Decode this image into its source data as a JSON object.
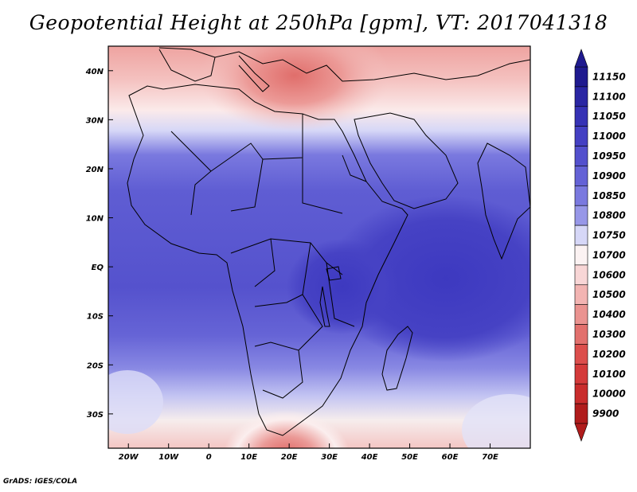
{
  "title": "Geopotential Height at 250hPa [gpm], VT: 2017041318",
  "credit": "GrADS: IGES/COLA",
  "map": {
    "lon_range": [
      -25,
      80
    ],
    "lat_range": [
      -37,
      45
    ],
    "lon_ticks": [
      {
        "value": -20,
        "label": "20W"
      },
      {
        "value": -10,
        "label": "10W"
      },
      {
        "value": 0,
        "label": "0"
      },
      {
        "value": 10,
        "label": "10E"
      },
      {
        "value": 20,
        "label": "20E"
      },
      {
        "value": 30,
        "label": "30E"
      },
      {
        "value": 40,
        "label": "40E"
      },
      {
        "value": 50,
        "label": "50E"
      },
      {
        "value": 60,
        "label": "60E"
      },
      {
        "value": 70,
        "label": "70E"
      }
    ],
    "lat_ticks": [
      {
        "value": 40,
        "label": "40N"
      },
      {
        "value": 30,
        "label": "30N"
      },
      {
        "value": 20,
        "label": "20N"
      },
      {
        "value": 10,
        "label": "10N"
      },
      {
        "value": 0,
        "label": "EQ"
      },
      {
        "value": -10,
        "label": "10S"
      },
      {
        "value": -20,
        "label": "20S"
      },
      {
        "value": -30,
        "label": "30S"
      }
    ]
  },
  "colorbar": {
    "levels": [
      {
        "label": "11150",
        "color": "#1f1a8f"
      },
      {
        "label": "11100",
        "color": "#2a26a3"
      },
      {
        "label": "11050",
        "color": "#3632b5"
      },
      {
        "label": "11000",
        "color": "#4440c3"
      },
      {
        "label": "10950",
        "color": "#5350cd"
      },
      {
        "label": "10900",
        "color": "#6462d6"
      },
      {
        "label": "10850",
        "color": "#7a79df"
      },
      {
        "label": "10800",
        "color": "#9797e8"
      },
      {
        "label": "10750",
        "color": "#d6d7f7"
      },
      {
        "label": "10700",
        "color": "#fbf2f2"
      },
      {
        "label": "10600",
        "color": "#f8d6d6"
      },
      {
        "label": "10500",
        "color": "#f2b4b2"
      },
      {
        "label": "10400",
        "color": "#ea9390"
      },
      {
        "label": "10300",
        "color": "#e2706d"
      },
      {
        "label": "10200",
        "color": "#dc4e4c"
      },
      {
        "label": "10100",
        "color": "#d43a3a"
      },
      {
        "label": "10000",
        "color": "#c92c2c"
      },
      {
        "label": "9900",
        "color": "#b01c1c"
      }
    ]
  }
}
